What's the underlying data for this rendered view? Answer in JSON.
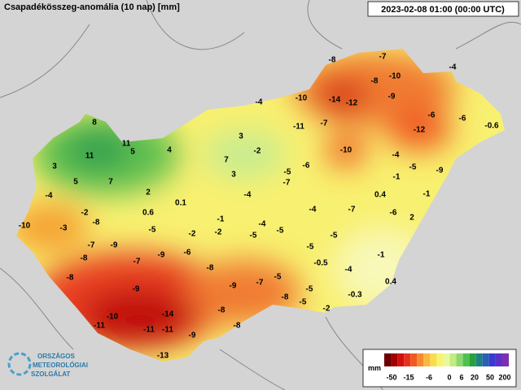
{
  "header": {
    "title": "Csapadékösszeg-anomália (10 nap) [mm]",
    "timestamp": "2023-02-08 01:00 (00:00 UTC)"
  },
  "stations": [
    "8",
    "11",
    "5",
    "4",
    "11",
    "3",
    "7",
    "5",
    "3",
    "7",
    "-2",
    "3",
    "-4",
    "-4",
    "2",
    "0.1",
    "0.6",
    "-2",
    "-10",
    "-8",
    "-3",
    "-1",
    "-4",
    "-5",
    "-7",
    "-6",
    "-5",
    "-2",
    "-2",
    "-5",
    "-4",
    "-5",
    "-4",
    "-7",
    "-7",
    "-9",
    "-8",
    "-7",
    "-9",
    "-6",
    "-8",
    "-8",
    "-5",
    "-5",
    "-0.5",
    "-4",
    "-1",
    "-9",
    "-9",
    "-7",
    "-5",
    "-5",
    "-8",
    "-5",
    "-0.3",
    "0.4",
    "-2",
    "-10",
    "-14",
    "-8",
    "-11",
    "-11",
    "-11",
    "-9",
    "-8",
    "-13",
    "-8",
    "-7",
    "-10",
    "-8",
    "-4",
    "-10",
    "-14",
    "-12",
    "-9",
    "-11",
    "-7",
    "-6",
    "-6",
    "-0.6",
    "-12",
    "-10",
    "-4",
    "-5",
    "-9",
    "-1",
    "0.4",
    "-1",
    "-6",
    "2"
  ],
  "legend": {
    "unit": "mm",
    "labels": [
      "-50",
      "-15",
      "-6",
      "0",
      "6",
      "20",
      "50",
      "200"
    ],
    "colors": [
      "#6b0000",
      "#a00000",
      "#d01010",
      "#e83020",
      "#f05a20",
      "#f58a30",
      "#f8b840",
      "#f8dc50",
      "#f8f470",
      "#e8f8a0",
      "#c0ec80",
      "#8cd870",
      "#50c050",
      "#28a040",
      "#208080",
      "#2a60b8",
      "#3a3ad0",
      "#5a30c8",
      "#7a30b0"
    ]
  },
  "logo": {
    "line1": "ORSZÁGOS",
    "line2": "METEOROLÓGIAI",
    "line3": "SZOLGÁLAT"
  }
}
